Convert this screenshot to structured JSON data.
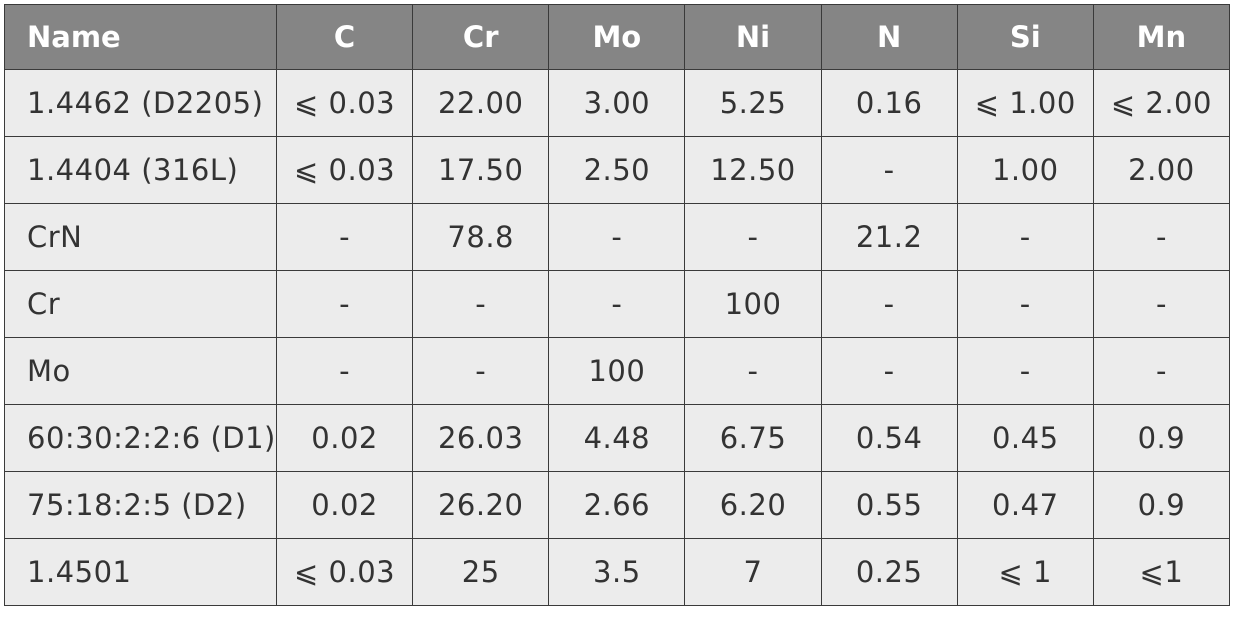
{
  "table": {
    "header": [
      "Name",
      "C",
      "Cr",
      "Mo",
      "Ni",
      "N",
      "Si",
      "Mn"
    ],
    "rows": [
      [
        "1.4462 (D2205)",
        "⩽ 0.03",
        "22.00",
        "3.00",
        "5.25",
        "0.16",
        "⩽ 1.00",
        "⩽ 2.00"
      ],
      [
        "1.4404 (316L)",
        "⩽ 0.03",
        "17.50",
        "2.50",
        "12.50",
        "-",
        "1.00",
        "2.00"
      ],
      [
        "CrN",
        "-",
        "78.8",
        "-",
        "-",
        "21.2",
        "-",
        "-"
      ],
      [
        "Cr",
        "-",
        "-",
        "-",
        "100",
        "-",
        "-",
        "-"
      ],
      [
        "Mo",
        "-",
        "-",
        "100",
        "-",
        "-",
        "-",
        "-"
      ],
      [
        "60:30:2:2:6 (D1)",
        "0.02",
        "26.03",
        "4.48",
        "6.75",
        "0.54",
        "0.45",
        "0.9"
      ],
      [
        "75:18:2:5 (D2)",
        "0.02",
        "26.20",
        "2.66",
        "6.20",
        "0.55",
        "0.47",
        "0.9"
      ],
      [
        "1.4501",
        "⩽ 0.03",
        "25",
        "3.5",
        "7",
        "0.25",
        "⩽ 1",
        "⩽1"
      ]
    ]
  }
}
